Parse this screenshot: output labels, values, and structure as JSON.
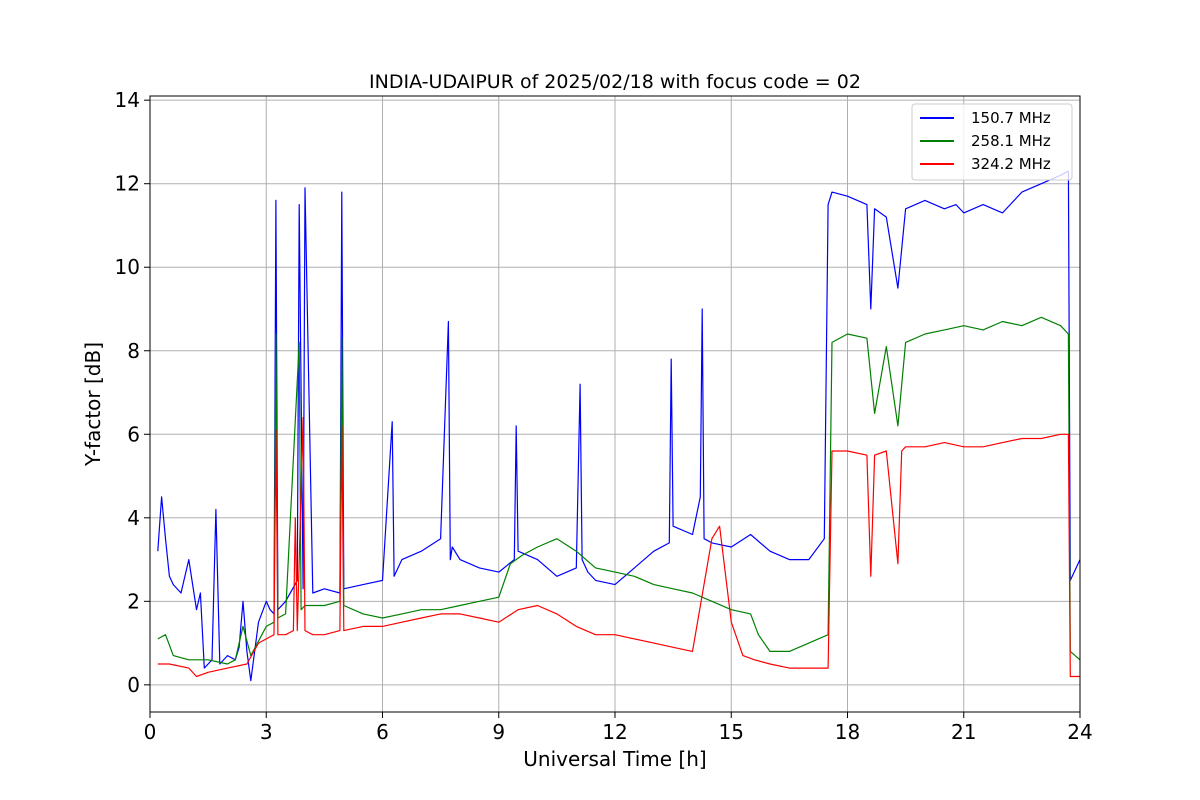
{
  "chart_data": {
    "type": "line",
    "title": "INDIA-UDAIPUR of 2025/02/18 with focus code = 02",
    "xlabel": "Universal Time [h]",
    "ylabel": "Y-factor [dB]",
    "xlim": [
      0,
      24
    ],
    "ylim": [
      -0.65,
      14.1
    ],
    "xticks": [
      0,
      3,
      6,
      9,
      12,
      15,
      18,
      21,
      24
    ],
    "yticks": [
      0,
      2,
      4,
      6,
      8,
      10,
      12,
      14
    ],
    "grid": true,
    "legend_position": "top-right",
    "series": [
      {
        "name": "150.7 MHz",
        "color": "#0000ff",
        "x": [
          0.2,
          0.3,
          0.4,
          0.5,
          0.6,
          0.8,
          1.0,
          1.2,
          1.3,
          1.4,
          1.6,
          1.7,
          1.8,
          2.0,
          2.2,
          2.3,
          2.4,
          2.5,
          2.6,
          2.8,
          3.0,
          3.1,
          3.2,
          3.25,
          3.3,
          3.5,
          3.8,
          3.85,
          3.95,
          4.0,
          4.2,
          4.5,
          4.9,
          4.95,
          5.0,
          5.5,
          6.0,
          6.25,
          6.3,
          6.5,
          7.0,
          7.5,
          7.7,
          7.75,
          7.8,
          8.0,
          8.5,
          9.0,
          9.4,
          9.45,
          9.5,
          10.0,
          10.5,
          11.0,
          11.1,
          11.15,
          11.3,
          11.5,
          12.0,
          12.5,
          13.0,
          13.4,
          13.45,
          13.5,
          14.0,
          14.2,
          14.25,
          14.3,
          14.5,
          15.0,
          15.5,
          16.0,
          16.5,
          17.0,
          17.4,
          17.5,
          17.6,
          18.0,
          18.5,
          18.6,
          18.7,
          19.0,
          19.3,
          19.5,
          20.0,
          20.5,
          20.8,
          21.0,
          21.5,
          22.0,
          22.5,
          23.0,
          23.5,
          23.7,
          23.75,
          24.0
        ],
        "y": [
          3.2,
          4.5,
          3.5,
          2.6,
          2.4,
          2.2,
          3.0,
          1.8,
          2.2,
          0.4,
          0.6,
          4.2,
          0.5,
          0.7,
          0.6,
          0.9,
          2.0,
          0.8,
          0.1,
          1.5,
          2.0,
          1.8,
          1.7,
          11.6,
          1.8,
          2.0,
          2.5,
          11.5,
          2.3,
          11.9,
          2.2,
          2.3,
          2.2,
          11.8,
          2.3,
          2.4,
          2.5,
          6.3,
          2.6,
          3.0,
          3.2,
          3.5,
          8.7,
          3.0,
          3.3,
          3.0,
          2.8,
          2.7,
          3.0,
          6.2,
          3.2,
          3.0,
          2.6,
          2.8,
          7.2,
          3.0,
          2.7,
          2.5,
          2.4,
          2.8,
          3.2,
          3.4,
          7.8,
          3.8,
          3.6,
          4.5,
          9.0,
          3.5,
          3.4,
          3.3,
          3.6,
          3.2,
          3.0,
          3.0,
          3.5,
          11.5,
          11.8,
          11.7,
          11.5,
          9.0,
          11.4,
          11.2,
          9.5,
          11.4,
          11.6,
          11.4,
          11.5,
          11.3,
          11.5,
          11.3,
          11.8,
          12.0,
          12.2,
          12.3,
          2.5,
          3.0
        ]
      },
      {
        "name": "258.1 MHz",
        "color": "#008000",
        "x": [
          0.2,
          0.4,
          0.6,
          1.0,
          1.5,
          2.0,
          2.2,
          2.4,
          2.6,
          3.0,
          3.2,
          3.25,
          3.3,
          3.5,
          3.85,
          3.9,
          4.0,
          4.5,
          4.9,
          4.95,
          5.0,
          5.5,
          6.0,
          6.5,
          7.0,
          7.5,
          8.0,
          8.5,
          9.0,
          9.3,
          9.6,
          10.0,
          10.5,
          11.0,
          11.5,
          12.0,
          12.5,
          13.0,
          13.5,
          14.0,
          14.5,
          15.0,
          15.5,
          15.7,
          16.0,
          16.5,
          17.0,
          17.5,
          17.6,
          18.0,
          18.5,
          18.7,
          19.0,
          19.3,
          19.5,
          20.0,
          20.5,
          21.0,
          21.5,
          22.0,
          22.5,
          23.0,
          23.5,
          23.7,
          23.75,
          24.0
        ],
        "y": [
          1.1,
          1.2,
          0.7,
          0.6,
          0.6,
          0.5,
          0.6,
          1.4,
          0.7,
          1.4,
          1.5,
          8.4,
          1.6,
          1.7,
          8.2,
          1.8,
          1.9,
          1.9,
          2.0,
          8.3,
          1.9,
          1.7,
          1.6,
          1.7,
          1.8,
          1.8,
          1.9,
          2.0,
          2.1,
          2.9,
          3.1,
          3.3,
          3.5,
          3.2,
          2.8,
          2.7,
          2.6,
          2.4,
          2.3,
          2.2,
          2.0,
          1.8,
          1.7,
          1.2,
          0.8,
          0.8,
          1.0,
          1.2,
          8.2,
          8.4,
          8.3,
          6.5,
          8.1,
          6.2,
          8.2,
          8.4,
          8.5,
          8.6,
          8.5,
          8.7,
          8.6,
          8.8,
          8.6,
          8.4,
          0.8,
          0.6
        ]
      },
      {
        "name": "324.2 MHz",
        "color": "#ff0000",
        "x": [
          0.2,
          0.5,
          1.0,
          1.2,
          1.5,
          2.0,
          2.5,
          2.8,
          3.0,
          3.2,
          3.25,
          3.3,
          3.5,
          3.7,
          3.75,
          3.8,
          3.95,
          4.0,
          4.2,
          4.5,
          4.9,
          4.95,
          5.0,
          5.5,
          6.0,
          6.5,
          7.0,
          7.5,
          8.0,
          8.5,
          9.0,
          9.5,
          10.0,
          10.5,
          11.0,
          11.5,
          12.0,
          12.5,
          13.0,
          13.5,
          14.0,
          14.5,
          14.7,
          15.0,
          15.3,
          15.6,
          16.0,
          16.5,
          17.0,
          17.5,
          17.6,
          18.0,
          18.5,
          18.6,
          18.7,
          19.0,
          19.3,
          19.4,
          19.5,
          20.0,
          20.5,
          21.0,
          21.5,
          22.0,
          22.5,
          23.0,
          23.5,
          23.7,
          23.75,
          24.0
        ],
        "y": [
          0.5,
          0.5,
          0.4,
          0.2,
          0.3,
          0.4,
          0.5,
          1.0,
          1.1,
          1.2,
          6.1,
          1.2,
          1.2,
          1.3,
          4.0,
          1.3,
          6.4,
          1.3,
          1.2,
          1.2,
          1.3,
          6.2,
          1.3,
          1.4,
          1.4,
          1.5,
          1.6,
          1.7,
          1.7,
          1.6,
          1.5,
          1.8,
          1.9,
          1.7,
          1.4,
          1.2,
          1.2,
          1.1,
          1.0,
          0.9,
          0.8,
          3.5,
          3.8,
          1.5,
          0.7,
          0.6,
          0.5,
          0.4,
          0.4,
          0.4,
          5.6,
          5.6,
          5.5,
          2.6,
          5.5,
          5.6,
          2.9,
          5.6,
          5.7,
          5.7,
          5.8,
          5.7,
          5.7,
          5.8,
          5.9,
          5.9,
          6.0,
          6.0,
          0.2,
          0.2
        ]
      }
    ]
  }
}
